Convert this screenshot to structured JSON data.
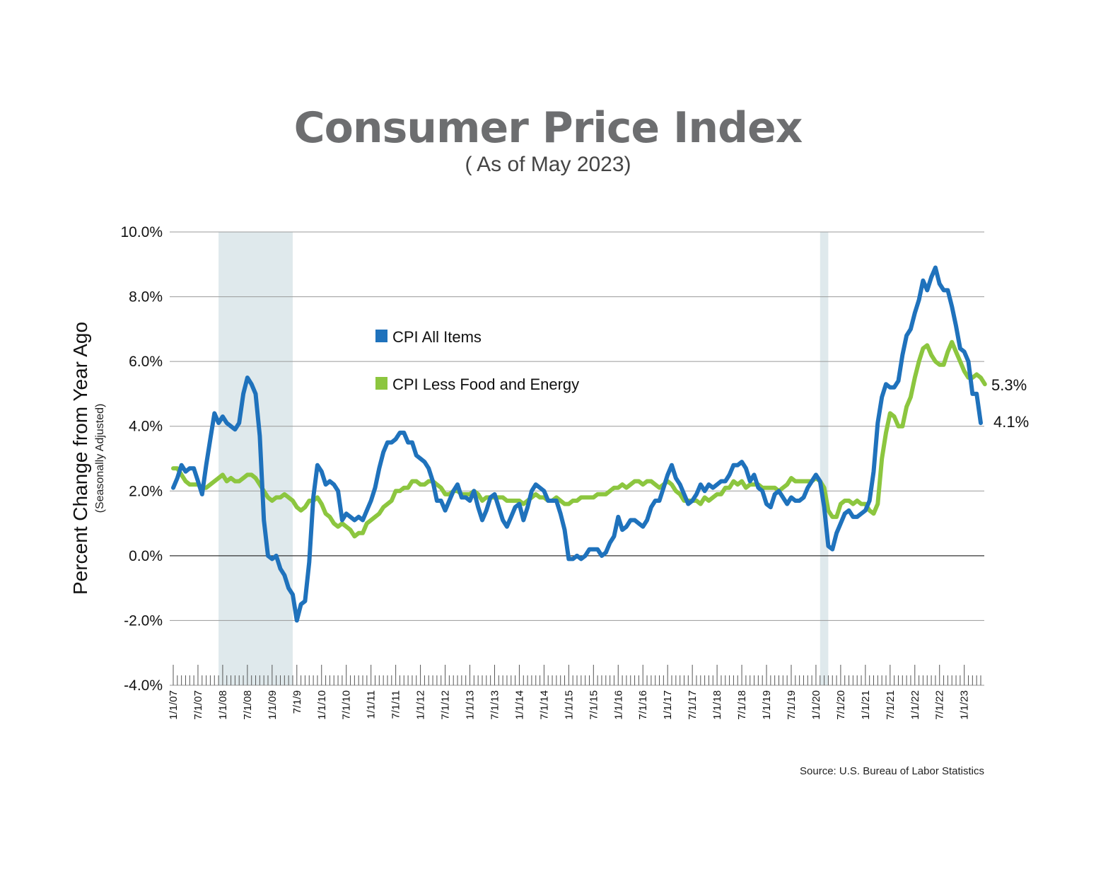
{
  "colors": {
    "all_items": "#1f72bc",
    "core": "#8cc63f",
    "recession": "#dfe9ec",
    "grid": "#9a9a9a",
    "title": "#6d6e70"
  },
  "chart_data": {
    "type": "line",
    "title": "Consumer Price Index",
    "subtitle": "( As of May 2023)",
    "ylabel": "Percent Change from Year Ago",
    "ylabel_sub": "(Seasonally Adjusted)",
    "source": "Source: U.S. Bureau of Labor Statistics",
    "ylim": [
      -4,
      10
    ],
    "yticks": [
      {
        "value": 10,
        "label": "10.0%"
      },
      {
        "value": 8,
        "label": "8.0%"
      },
      {
        "value": 6,
        "label": "6.0%"
      },
      {
        "value": 4,
        "label": "4.0%"
      },
      {
        "value": 2,
        "label": "2.0%"
      },
      {
        "value": 0,
        "label": "0.0%"
      },
      {
        "value": -2,
        "label": "-2.0%"
      },
      {
        "value": -4,
        "label": "-4.0%"
      }
    ],
    "x_start": "2007-01",
    "x_end": "2023-05",
    "xticks": [
      {
        "month_index": 0,
        "label": "1/1/07"
      },
      {
        "month_index": 6,
        "label": "7/1/07"
      },
      {
        "month_index": 12,
        "label": "1/1/08"
      },
      {
        "month_index": 18,
        "label": "7/1/08"
      },
      {
        "month_index": 24,
        "label": "1/1/09"
      },
      {
        "month_index": 30,
        "label": "7/1/9"
      },
      {
        "month_index": 36,
        "label": "1/1/10"
      },
      {
        "month_index": 42,
        "label": "7/1/10"
      },
      {
        "month_index": 48,
        "label": "1/1/11"
      },
      {
        "month_index": 54,
        "label": "7/1/11"
      },
      {
        "month_index": 60,
        "label": "1/1/12"
      },
      {
        "month_index": 66,
        "label": "7/1/12"
      },
      {
        "month_index": 72,
        "label": "1/1/13"
      },
      {
        "month_index": 78,
        "label": "7/1/13"
      },
      {
        "month_index": 84,
        "label": "1/1/14"
      },
      {
        "month_index": 90,
        "label": "7/1/14"
      },
      {
        "month_index": 96,
        "label": "1/1/15"
      },
      {
        "month_index": 102,
        "label": "7/1/15"
      },
      {
        "month_index": 108,
        "label": "1/1/16"
      },
      {
        "month_index": 114,
        "label": "7/1/16"
      },
      {
        "month_index": 120,
        "label": "1/1/17"
      },
      {
        "month_index": 126,
        "label": "7/1/17"
      },
      {
        "month_index": 132,
        "label": "1/1/18"
      },
      {
        "month_index": 138,
        "label": "7/1/18"
      },
      {
        "month_index": 144,
        "label": "1/1/19"
      },
      {
        "month_index": 150,
        "label": "7/1/19"
      },
      {
        "month_index": 156,
        "label": "1/1/20"
      },
      {
        "month_index": 162,
        "label": "7/1/20"
      },
      {
        "month_index": 168,
        "label": "1/1/21"
      },
      {
        "month_index": 174,
        "label": "7/1/21"
      },
      {
        "month_index": 180,
        "label": "1/1/22"
      },
      {
        "month_index": 186,
        "label": "7/1/22"
      },
      {
        "month_index": 192,
        "label": "1/1/23"
      }
    ],
    "recessions": [
      {
        "start_month_index": 11,
        "end_month_index": 29
      },
      {
        "start_month_index": 157,
        "end_month_index": 159
      }
    ],
    "series": [
      {
        "name": "CPI All Items",
        "end_label": "4.1%",
        "values": [
          2.1,
          2.4,
          2.8,
          2.6,
          2.7,
          2.7,
          2.3,
          1.9,
          2.8,
          3.6,
          4.4,
          4.1,
          4.3,
          4.1,
          4.0,
          3.9,
          4.1,
          5.0,
          5.5,
          5.3,
          5.0,
          3.7,
          1.1,
          0.0,
          -0.1,
          0.0,
          -0.4,
          -0.6,
          -1.0,
          -1.2,
          -2.0,
          -1.5,
          -1.4,
          -0.2,
          1.8,
          2.8,
          2.6,
          2.2,
          2.3,
          2.2,
          2.0,
          1.1,
          1.3,
          1.2,
          1.1,
          1.2,
          1.1,
          1.4,
          1.7,
          2.1,
          2.7,
          3.2,
          3.5,
          3.5,
          3.6,
          3.8,
          3.8,
          3.5,
          3.5,
          3.1,
          3.0,
          2.9,
          2.7,
          2.3,
          1.7,
          1.7,
          1.4,
          1.7,
          2.0,
          2.2,
          1.8,
          1.8,
          1.7,
          2.0,
          1.5,
          1.1,
          1.4,
          1.8,
          1.9,
          1.5,
          1.1,
          0.9,
          1.2,
          1.5,
          1.6,
          1.1,
          1.5,
          2.0,
          2.2,
          2.1,
          2.0,
          1.7,
          1.7,
          1.7,
          1.3,
          0.8,
          -0.1,
          -0.1,
          0.0,
          -0.1,
          0.0,
          0.2,
          0.2,
          0.2,
          0.0,
          0.1,
          0.4,
          0.6,
          1.2,
          0.8,
          0.9,
          1.1,
          1.1,
          1.0,
          0.9,
          1.1,
          1.5,
          1.7,
          1.7,
          2.1,
          2.5,
          2.8,
          2.4,
          2.2,
          1.9,
          1.6,
          1.7,
          1.9,
          2.2,
          2.0,
          2.2,
          2.1,
          2.2,
          2.3,
          2.3,
          2.5,
          2.8,
          2.8,
          2.9,
          2.7,
          2.3,
          2.5,
          2.1,
          2.0,
          1.6,
          1.5,
          1.9,
          2.0,
          1.8,
          1.6,
          1.8,
          1.7,
          1.7,
          1.8,
          2.1,
          2.3,
          2.5,
          2.3,
          1.5,
          0.3,
          0.2,
          0.7,
          1.0,
          1.3,
          1.4,
          1.2,
          1.2,
          1.3,
          1.4,
          1.7,
          2.6,
          4.1,
          4.9,
          5.3,
          5.2,
          5.2,
          5.4,
          6.2,
          6.8,
          7.0,
          7.5,
          7.9,
          8.5,
          8.2,
          8.6,
          8.9,
          8.4,
          8.2,
          8.2,
          7.7,
          7.1,
          6.4,
          6.3,
          6.0,
          5.0,
          5.0,
          4.1
        ]
      },
      {
        "name": "CPI Less Food and Energy",
        "end_label": "5.3%",
        "values": [
          2.7,
          2.7,
          2.5,
          2.3,
          2.2,
          2.2,
          2.2,
          2.1,
          2.1,
          2.2,
          2.3,
          2.4,
          2.5,
          2.3,
          2.4,
          2.3,
          2.3,
          2.4,
          2.5,
          2.5,
          2.4,
          2.2,
          2.0,
          1.8,
          1.7,
          1.8,
          1.8,
          1.9,
          1.8,
          1.7,
          1.5,
          1.4,
          1.5,
          1.7,
          1.7,
          1.8,
          1.6,
          1.3,
          1.2,
          1.0,
          0.9,
          1.0,
          0.9,
          0.8,
          0.6,
          0.7,
          0.7,
          1.0,
          1.1,
          1.2,
          1.3,
          1.5,
          1.6,
          1.7,
          2.0,
          2.0,
          2.1,
          2.1,
          2.3,
          2.3,
          2.2,
          2.2,
          2.3,
          2.3,
          2.2,
          2.1,
          1.9,
          1.9,
          2.0,
          2.0,
          1.9,
          1.9,
          1.9,
          2.0,
          1.9,
          1.7,
          1.8,
          1.8,
          1.8,
          1.8,
          1.8,
          1.7,
          1.7,
          1.7,
          1.7,
          1.6,
          1.7,
          1.8,
          1.9,
          1.8,
          1.8,
          1.7,
          1.7,
          1.8,
          1.7,
          1.6,
          1.6,
          1.7,
          1.7,
          1.8,
          1.8,
          1.8,
          1.8,
          1.9,
          1.9,
          1.9,
          2.0,
          2.1,
          2.1,
          2.2,
          2.1,
          2.2,
          2.3,
          2.3,
          2.2,
          2.3,
          2.3,
          2.2,
          2.1,
          2.2,
          2.3,
          2.2,
          2.0,
          1.9,
          1.7,
          1.7,
          1.7,
          1.7,
          1.6,
          1.8,
          1.7,
          1.8,
          1.9,
          1.9,
          2.1,
          2.1,
          2.3,
          2.2,
          2.3,
          2.1,
          2.2,
          2.2,
          2.2,
          2.1,
          2.1,
          2.1,
          2.1,
          2.0,
          2.1,
          2.2,
          2.4,
          2.3,
          2.3,
          2.3,
          2.3,
          2.3,
          2.4,
          2.3,
          2.1,
          1.4,
          1.2,
          1.2,
          1.6,
          1.7,
          1.7,
          1.6,
          1.7,
          1.6,
          1.6,
          1.4,
          1.3,
          1.6,
          3.0,
          3.8,
          4.4,
          4.3,
          4.0,
          4.0,
          4.6,
          4.9,
          5.5,
          6.0,
          6.4,
          6.5,
          6.2,
          6.0,
          5.9,
          5.9,
          6.3,
          6.6,
          6.3,
          6.0,
          5.7,
          5.5,
          5.5,
          5.6,
          5.5,
          5.3
        ]
      }
    ]
  }
}
